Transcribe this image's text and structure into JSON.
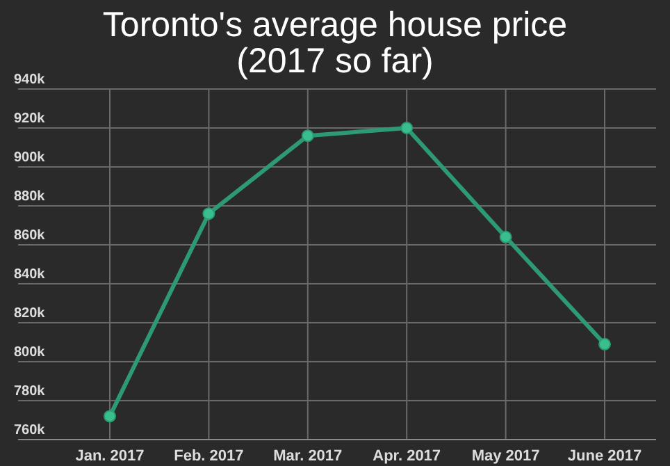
{
  "chart_data": {
    "type": "line",
    "title": "Toronto's average house price",
    "subtitle": "(2017 so far)",
    "categories": [
      "Jan. 2017",
      "Feb. 2017",
      "Mar. 2017",
      "Apr. 2017",
      "May 2017",
      "June 2017"
    ],
    "series": [
      {
        "color": "#2e9a73",
        "values": [
          772000,
          876000,
          916000,
          920000,
          864000,
          809000
        ]
      }
    ],
    "ylim": [
      760000,
      940000
    ],
    "yticks": [
      {
        "value": 760000,
        "label": "760k"
      },
      {
        "value": 780000,
        "label": "780k"
      },
      {
        "value": 800000,
        "label": "800k"
      },
      {
        "value": 820000,
        "label": "820k"
      },
      {
        "value": 840000,
        "label": "840k"
      },
      {
        "value": 860000,
        "label": "860k"
      },
      {
        "value": 880000,
        "label": "880k"
      },
      {
        "value": 900000,
        "label": "900k"
      },
      {
        "value": 920000,
        "label": "920k"
      },
      {
        "value": 940000,
        "label": "940k"
      }
    ],
    "grid": true,
    "marker": "circle",
    "line_style": "solid"
  }
}
